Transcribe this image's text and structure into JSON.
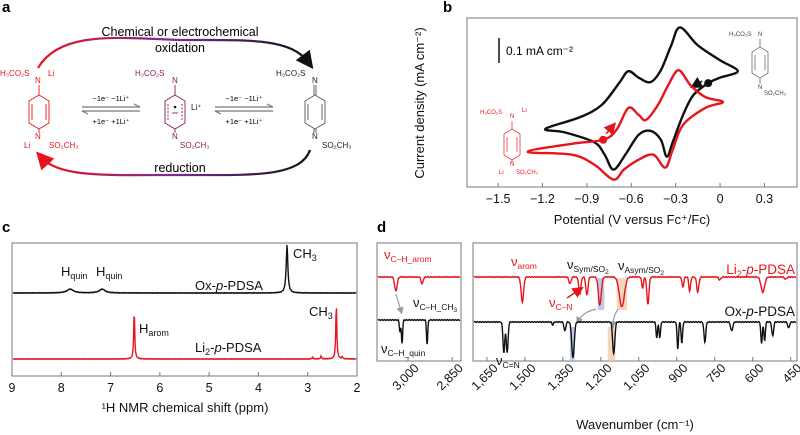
{
  "panel_labels": {
    "a": "a",
    "b": "b",
    "c": "c",
    "d": "d"
  },
  "colors": {
    "red": "#e8141b",
    "black": "#111111",
    "purple": "#8b1a5a",
    "gray": "#9a9a9a",
    "sym_highlight": "#9fb6df",
    "asym_highlight": "#f0c4a0"
  },
  "panel_a": {
    "oxidation_line1": "Chemical or electrochemical",
    "oxidation_line2": "oxidation",
    "reduction": "reduction",
    "eq_top": "−1e⁻   −1Li⁺",
    "eq_bottom": "+1e⁻   +1Li⁺",
    "mol_sulfonyl_left": "H₃CO₂S",
    "mol_n": "N",
    "mol_li": "Li",
    "mol_sulfonyl_right": "SO₂CH₃",
    "mol_li_plus": "Li⁺"
  },
  "panel_b_structures": {
    "sulfonyl_left": "H₃CO₂S",
    "n": "N",
    "li_plus": "Li",
    "sulfonyl_right": "SO₂CH₃"
  },
  "panel_c_labels": {
    "h_quin": {
      "base": "H",
      "sub": "quin"
    },
    "ch3": {
      "base": "CH",
      "sub": "3"
    },
    "h_arom": {
      "base": "H",
      "sub": "arom"
    },
    "ox": {
      "a": "Ox-",
      "b": "p",
      "c": "-PDSA"
    },
    "li2": {
      "a": "Li",
      "sub": "2",
      "b": "-",
      "c": "p",
      "d": "-PDSA"
    }
  },
  "panel_d_labels": {
    "nu": "ν",
    "ch_arom": "C–H_arom",
    "ch_ch3": "C–H_CH",
    "ch_ch3_sub": "3",
    "ch_quin": "C–H_quin",
    "arom": "arom",
    "sym": "Sym/SO",
    "asym": "Asym/SO",
    "so_sub": "2",
    "cn": "C–N",
    "c_eq_n": "C=N"
  },
  "chart_data": [
    {
      "type": "line",
      "panel": "b",
      "xlabel": "Potential (V versus Fc⁺/Fc)",
      "ylabel": "Current density (mA cm⁻²)",
      "xlim": [
        -1.71,
        0.52
      ],
      "ylim": [
        -0.15,
        0.53
      ],
      "xticks": [
        -1.5,
        -1.2,
        -0.9,
        -0.6,
        -0.3,
        0,
        0.3
      ],
      "xtick_labels": [
        "−1.5",
        "−1.2",
        "−0.9",
        "−0.6",
        "−0.3",
        "0",
        "0.3"
      ],
      "scale_bar": {
        "label": "0.1 mA cm⁻²",
        "value": 0.1
      },
      "grid": false,
      "series": [
        {
          "color": "#111111",
          "start_marker": [
            -0.08,
            0.268
          ],
          "points": [
            [
              -0.08,
              0.268
            ],
            [
              0.0,
              0.29
            ],
            [
              0.12,
              0.316
            ],
            [
              0.0,
              0.36
            ],
            [
              -0.15,
              0.42
            ],
            [
              -0.27,
              0.492
            ],
            [
              -0.33,
              0.42
            ],
            [
              -0.4,
              0.32
            ],
            [
              -0.47,
              0.272
            ],
            [
              -0.55,
              0.29
            ],
            [
              -0.62,
              0.316
            ],
            [
              -0.68,
              0.27
            ],
            [
              -0.8,
              0.18
            ],
            [
              -0.95,
              0.13
            ],
            [
              -1.18,
              0.084
            ],
            [
              -1.05,
              0.07
            ],
            [
              -0.85,
              0.03
            ],
            [
              -0.78,
              -0.02
            ],
            [
              -0.72,
              -0.08
            ],
            [
              -0.64,
              -0.02
            ],
            [
              -0.55,
              0.06
            ],
            [
              -0.47,
              0.076
            ],
            [
              -0.4,
              0.04
            ],
            [
              -0.36,
              -0.028
            ],
            [
              -0.32,
              0.03
            ],
            [
              -0.25,
              0.14
            ],
            [
              -0.18,
              0.22
            ]
          ]
        },
        {
          "color": "#e8141b",
          "start_marker": [
            -0.79,
            0.04
          ],
          "points": [
            [
              -0.79,
              0.04
            ],
            [
              -0.7,
              0.08
            ],
            [
              -0.62,
              0.168
            ],
            [
              -0.55,
              0.14
            ],
            [
              -0.5,
              0.12
            ],
            [
              -0.42,
              0.18
            ],
            [
              -0.35,
              0.26
            ],
            [
              -0.28,
              0.32
            ],
            [
              -0.2,
              0.26
            ],
            [
              -0.1,
              0.212
            ],
            [
              0.02,
              0.192
            ],
            [
              -0.1,
              0.168
            ],
            [
              -0.25,
              0.1
            ],
            [
              -0.32,
              0.0
            ],
            [
              -0.37,
              -0.072
            ],
            [
              -0.45,
              -0.02
            ],
            [
              -0.55,
              -0.04
            ],
            [
              -0.65,
              -0.08
            ],
            [
              -0.72,
              -0.12
            ],
            [
              -0.85,
              -0.06
            ],
            [
              -1.0,
              -0.02
            ],
            [
              -1.3,
              -0.008
            ],
            [
              -1.0,
              0.024
            ]
          ]
        }
      ]
    },
    {
      "type": "line",
      "panel": "c",
      "xlabel": "¹H NMR chemical shift (ppm)",
      "xlim": [
        9,
        2
      ],
      "xticks": [
        9,
        8,
        7,
        6,
        5,
        4,
        3,
        2
      ],
      "series": [
        {
          "name": "Ox-p-PDSA",
          "color": "#111111",
          "peaks": [
            {
              "ppm": 7.82,
              "intensity": 0.08,
              "width": 0.08
            },
            {
              "ppm": 7.17,
              "intensity": 0.08,
              "width": 0.07
            },
            {
              "ppm": 3.42,
              "intensity": 1.0,
              "width": 0.02
            }
          ]
        },
        {
          "name": "Li2-p-PDSA",
          "color": "#e8141b",
          "peaks": [
            {
              "ppm": 6.52,
              "intensity": 1.02,
              "width": 0.005
            },
            {
              "ppm": 2.42,
              "intensity": 1.17,
              "width": 0.005
            },
            {
              "ppm": 2.9,
              "intensity": 0.04,
              "width": 0.005
            },
            {
              "ppm": 2.73,
              "intensity": 0.06,
              "width": 0.005
            },
            {
              "ppm": 2.3,
              "intensity": 0.04,
              "width": 0.005
            }
          ]
        }
      ]
    },
    {
      "type": "line",
      "panel": "d-left",
      "xlim": [
        3105,
        2820
      ],
      "xticks": [
        3000,
        2850
      ],
      "xtick_labels": [
        "3,000",
        "2,850"
      ],
      "series": [
        {
          "name": "Li2-p-PDSA",
          "color": "#e8141b",
          "dips": [
            {
              "wn": 3041,
              "depth": 0.39,
              "width": 6
            },
            {
              "wn": 2952,
              "depth": 0.19,
              "width": 5
            }
          ]
        },
        {
          "name": "Ox-p-PDSA",
          "color": "#111111",
          "dips": [
            {
              "wn": 3027,
              "depth": 0.33,
              "width": 3
            },
            {
              "wn": 3020,
              "depth": 0.64,
              "width": 3
            },
            {
              "wn": 2935,
              "depth": 0.67,
              "width": 3
            }
          ]
        }
      ]
    },
    {
      "type": "line",
      "panel": "d-right",
      "xlabel": "Wavenumber (cm⁻¹)",
      "xlim": [
        1705,
        425
      ],
      "xticks": [
        1650,
        1500,
        1350,
        1200,
        1050,
        900,
        750,
        600,
        450
      ],
      "xtick_labels": [
        "1,650",
        "1,500",
        "1,350",
        "1,200",
        "1,050",
        "900",
        "750",
        "600",
        "450"
      ],
      "highlights": [
        {
          "from": 1212,
          "to": 1186,
          "color": "sym"
        },
        {
          "from": 1137,
          "to": 1097,
          "color": "asym"
        }
      ],
      "series": [
        {
          "name": "Li2-p-PDSA",
          "color": "#e8141b",
          "dips": [
            {
              "wn": 1510,
              "depth": 0.69,
              "width": 7
            },
            {
              "wn": 1322,
              "depth": 0.19,
              "width": 6
            },
            {
              "wn": 1283,
              "depth": 0.47,
              "width": 6
            },
            {
              "wn": 1255,
              "depth": 0.5,
              "width": 6
            },
            {
              "wn": 1204,
              "depth": 0.78,
              "width": 8
            },
            {
              "wn": 1117,
              "depth": 0.83,
              "width": 14
            },
            {
              "wn": 1014,
              "depth": 0.75,
              "width": 6
            },
            {
              "wn": 1035,
              "depth": 0.3,
              "width": 5
            },
            {
              "wn": 876,
              "depth": 0.28,
              "width": 5
            },
            {
              "wn": 849,
              "depth": 0.39,
              "width": 5
            },
            {
              "wn": 817,
              "depth": 0.42,
              "width": 6
            },
            {
              "wn": 730,
              "depth": 0.08,
              "width": 6
            },
            {
              "wn": 560,
              "depth": 0.42,
              "width": 10
            },
            {
              "wn": 470,
              "depth": 0.06,
              "width": 6
            }
          ]
        },
        {
          "name": "Ox-p-PDSA",
          "color": "#111111",
          "dips": [
            {
              "wn": 1583,
              "depth": 0.86,
              "width": 5
            },
            {
              "wn": 1570,
              "depth": 0.86,
              "width": 5
            },
            {
              "wn": 1390,
              "depth": 0.08,
              "width": 4
            },
            {
              "wn": 1342,
              "depth": 0.25,
              "width": 5
            },
            {
              "wn": 1310,
              "depth": 1.0,
              "width": 7
            },
            {
              "wn": 1149,
              "depth": 0.89,
              "width": 6
            },
            {
              "wn": 979,
              "depth": 0.44,
              "width": 4
            },
            {
              "wn": 967,
              "depth": 0.44,
              "width": 4
            },
            {
              "wn": 896,
              "depth": 0.75,
              "width": 4
            },
            {
              "wn": 880,
              "depth": 0.6,
              "width": 4
            },
            {
              "wn": 789,
              "depth": 0.56,
              "width": 5
            },
            {
              "wn": 683,
              "depth": 0.25,
              "width": 6
            },
            {
              "wn": 565,
              "depth": 0.61,
              "width": 4
            },
            {
              "wn": 553,
              "depth": 0.53,
              "width": 4
            },
            {
              "wn": 521,
              "depth": 0.39,
              "width": 5
            },
            {
              "wn": 458,
              "depth": 0.17,
              "width": 5
            }
          ]
        }
      ]
    }
  ]
}
